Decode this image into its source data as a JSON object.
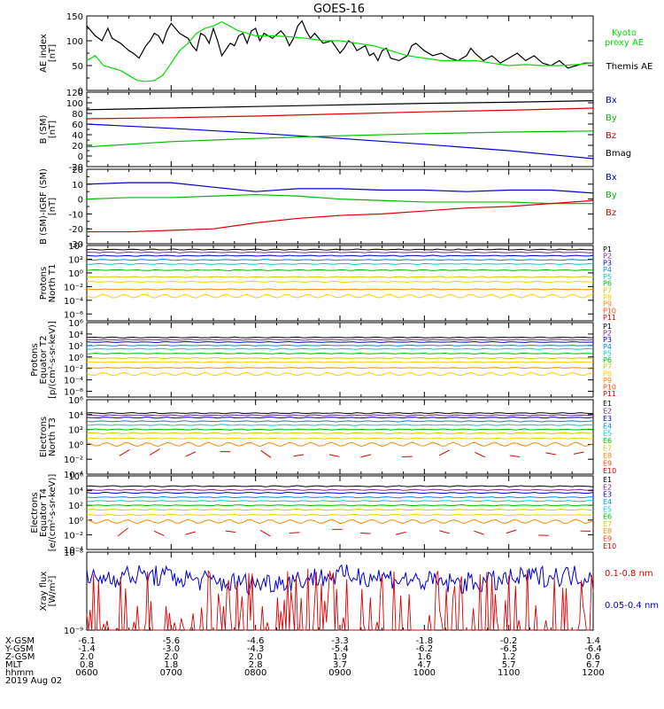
{
  "chart_data": {
    "type": "line",
    "title": "GOES-16",
    "panels": [
      {
        "id": "ae",
        "ylabel": [
          "AE index",
          "[nT]"
        ],
        "ylim": [
          0,
          150
        ],
        "log": false,
        "ticks": [
          "0",
          "50",
          "100",
          "150"
        ],
        "tick_values": [
          0,
          50,
          100,
          150
        ],
        "legend": [
          {
            "name": "Kyoto",
            "color": "#00dd00"
          },
          {
            "name": "proxy AE",
            "color": "#00dd00"
          },
          {
            "name": "Themis AE",
            "color": "#000000"
          }
        ],
        "series": [
          {
            "name": "Themis AE",
            "color": "#000000",
            "kind": "line",
            "x": [
              0,
              0.05,
              0.1,
              0.18,
              0.25,
              0.3,
              0.4,
              0.5,
              0.55,
              0.62,
              0.7,
              0.75,
              0.8,
              0.85,
              0.9,
              0.95,
              1.0,
              1.05,
              1.1,
              1.2,
              1.25,
              1.3,
              1.35,
              1.4,
              1.45,
              1.5,
              1.55,
              1.6,
              1.7,
              1.75,
              1.8,
              1.85,
              1.9,
              1.95,
              2.0,
              2.05,
              2.1,
              2.2,
              2.3,
              2.35,
              2.4,
              2.45,
              2.5,
              2.55,
              2.6,
              2.65,
              2.7,
              2.8,
              2.9,
              3.0,
              3.05,
              3.1,
              3.15,
              3.2,
              3.3,
              3.35,
              3.4,
              3.45,
              3.5,
              3.55,
              3.6,
              3.7,
              3.8,
              3.85,
              3.9,
              4.0,
              4.1,
              4.2,
              4.3,
              4.4,
              4.5,
              4.55,
              4.6,
              4.7,
              4.8,
              4.9,
              5.0,
              5.1,
              5.2,
              5.3,
              5.4,
              5.5,
              5.6,
              5.7,
              5.8,
              5.9,
              6.0
            ],
            "y": [
              130,
              120,
              110,
              100,
              125,
              105,
              95,
              80,
              75,
              65,
              90,
              100,
              115,
              110,
              95,
              120,
              135,
              125,
              115,
              105,
              90,
              80,
              115,
              110,
              95,
              125,
              100,
              70,
              95,
              90,
              110,
              115,
              95,
              120,
              125,
              100,
              115,
              105,
              120,
              110,
              90,
              105,
              130,
              140,
              120,
              105,
              115,
              95,
              100,
              75,
              85,
              100,
              95,
              80,
              90,
              70,
              75,
              60,
              80,
              85,
              65,
              60,
              70,
              90,
              95,
              80,
              70,
              75,
              65,
              60,
              70,
              85,
              75,
              60,
              70,
              55,
              65,
              75,
              60,
              70,
              55,
              50,
              60,
              45,
              50,
              55,
              55
            ]
          },
          {
            "name": "Kyoto proxy AE",
            "color": "#00dd00",
            "kind": "line",
            "x": [
              0,
              0.1,
              0.2,
              0.3,
              0.4,
              0.5,
              0.6,
              0.7,
              0.8,
              0.9,
              1.0,
              1.1,
              1.2,
              1.3,
              1.4,
              1.5,
              1.6,
              1.8,
              2.0,
              2.2,
              2.4,
              2.6,
              2.8,
              3.0,
              3.2,
              3.4,
              3.6,
              3.8,
              4.0,
              4.2,
              4.4,
              4.6,
              4.8,
              5.0,
              5.2,
              5.4,
              5.6,
              5.8,
              6.0
            ],
            "y": [
              60,
              70,
              50,
              45,
              40,
              30,
              20,
              18,
              20,
              30,
              55,
              80,
              95,
              115,
              125,
              130,
              138,
              120,
              110,
              110,
              108,
              105,
              100,
              100,
              95,
              90,
              80,
              70,
              65,
              60,
              60,
              60,
              55,
              50,
              52,
              50,
              50,
              52,
              55
            ]
          }
        ]
      },
      {
        "id": "bsm",
        "ylabel": [
          "B (SM)",
          "[nT]"
        ],
        "ylim": [
          -20,
          120
        ],
        "log": false,
        "ticks": [
          "-20",
          "0",
          "20",
          "40",
          "60",
          "80",
          "100",
          "120"
        ],
        "tick_values": [
          -20,
          0,
          20,
          40,
          60,
          80,
          100,
          120
        ],
        "legend": [
          {
            "name": "Bx",
            "color": "#0000cc"
          },
          {
            "name": "By",
            "color": "#00bb00"
          },
          {
            "name": "Bz",
            "color": "#dd0000"
          },
          {
            "name": "Bmag",
            "color": "#000000"
          }
        ],
        "series": [
          {
            "name": "Bmag",
            "color": "#000000",
            "x": [
              0,
              1,
              2,
              3,
              4,
              5,
              6
            ],
            "y": [
              87,
              90,
              93,
              96,
              99,
              101,
              104
            ]
          },
          {
            "name": "Bz",
            "color": "#dd0000",
            "x": [
              0,
              1,
              2,
              3,
              4,
              5,
              6
            ],
            "y": [
              70,
              72,
              75,
              79,
              83,
              86,
              90
            ]
          },
          {
            "name": "Bx",
            "color": "#0000cc",
            "x": [
              0,
              1,
              2,
              3,
              4,
              5,
              6
            ],
            "y": [
              60,
              52,
              43,
              33,
              22,
              10,
              -5
            ]
          },
          {
            "name": "By",
            "color": "#00bb00",
            "x": [
              0,
              1,
              2,
              3,
              4,
              5,
              6
            ],
            "y": [
              17,
              27,
              33,
              38,
              42,
              45,
              47
            ]
          }
        ]
      },
      {
        "id": "bsmigrf",
        "ylabel": [
          "B (SM)-IGRF (SM)",
          "[nT]"
        ],
        "ylim": [
          -30,
          20
        ],
        "log": false,
        "ticks": [
          "-30",
          "-20",
          "-10",
          "0",
          "10",
          "20"
        ],
        "tick_values": [
          -30,
          -20,
          -10,
          0,
          10,
          20
        ],
        "legend": [
          {
            "name": "Bx",
            "color": "#0000cc"
          },
          {
            "name": "By",
            "color": "#00bb00"
          },
          {
            "name": "Bz",
            "color": "#dd0000"
          }
        ],
        "series": [
          {
            "name": "Bx",
            "color": "#0000cc",
            "x": [
              0,
              0.5,
              1,
              1.5,
              2,
              2.5,
              3,
              3.5,
              4,
              4.5,
              5,
              5.5,
              6
            ],
            "y": [
              10,
              11,
              11,
              8,
              5,
              7,
              7,
              6,
              6,
              5,
              6,
              6,
              4
            ]
          },
          {
            "name": "By",
            "color": "#00bb00",
            "x": [
              0,
              0.5,
              1,
              1.5,
              2,
              2.5,
              3,
              3.5,
              4,
              4.5,
              5,
              5.5,
              6
            ],
            "y": [
              0,
              1,
              1,
              2,
              3,
              2,
              0,
              -1,
              -2,
              -2,
              -2,
              -3,
              -3
            ]
          },
          {
            "name": "Bz",
            "color": "#dd0000",
            "x": [
              0,
              0.5,
              1,
              1.5,
              2,
              2.5,
              3,
              3.5,
              4,
              4.5,
              5,
              5.5,
              6
            ],
            "y": [
              -22,
              -22,
              -21,
              -20,
              -16,
              -13,
              -11,
              -10,
              -8,
              -6,
              -5,
              -3,
              -1
            ]
          }
        ]
      },
      {
        "id": "pn",
        "ylabel": [
          "Protons",
          "North T1"
        ],
        "ylim": [
          -7,
          4
        ],
        "log": true,
        "ticks": [
          "10⁶",
          "10⁴",
          "10²",
          "10⁰",
          "10⁻²",
          "10⁻⁴",
          "10⁻⁶"
        ],
        "tick_exps": [
          4,
          2,
          0,
          -2,
          -4,
          -6
        ],
        "tick_labels": [
          "10^4",
          "10^2",
          "10^0",
          "10^-2",
          "10^-4",
          "10^-6"
        ],
        "legend": [
          {
            "name": "P1",
            "color": "#000000"
          },
          {
            "name": "P2",
            "color": "#7a2a8a"
          },
          {
            "name": "P3",
            "color": "#0000cc"
          },
          {
            "name": "P4",
            "color": "#0088ff"
          },
          {
            "name": "P5",
            "color": "#00cccc"
          },
          {
            "name": "P6",
            "color": "#00bb00"
          },
          {
            "name": "P7",
            "color": "#cccc00"
          },
          {
            "name": "P8",
            "color": "#ffcc00"
          },
          {
            "name": "P9",
            "color": "#ff8800"
          },
          {
            "name": "P10",
            "color": "#ff4400"
          },
          {
            "name": "P11",
            "color": "#cc0000"
          }
        ],
        "levels": [
          3.4,
          3.0,
          2.5,
          1.9,
          1.3,
          0.4,
          -0.6,
          -1.3,
          -2.4,
          -3.4
        ],
        "colors": [
          "#000000",
          "#7a2a8a",
          "#0000cc",
          "#0088ff",
          "#00cccc",
          "#00bb00",
          "#cccc00",
          "#ffcc00",
          "#ff8800",
          "#ffcc00"
        ]
      },
      {
        "id": "pe",
        "ylabel": [
          "Protons",
          "Equator T2",
          "[p/(cm²-s-sr-keV)]"
        ],
        "ylim": [
          -7,
          6
        ],
        "log": true,
        "tick_exps": [
          6,
          4,
          2,
          0,
          -2,
          -4,
          -6
        ],
        "tick_labels": [
          "10^6",
          "10^4",
          "10^2",
          "10^0",
          "10^-2",
          "10^-4",
          "10^-6"
        ],
        "legend": [
          {
            "name": "P1",
            "color": "#000000"
          },
          {
            "name": "P2",
            "color": "#7a2a8a"
          },
          {
            "name": "P3",
            "color": "#0000cc"
          },
          {
            "name": "P4",
            "color": "#0088ff"
          },
          {
            "name": "P5",
            "color": "#00cccc"
          },
          {
            "name": "P6",
            "color": "#00bb00"
          },
          {
            "name": "P7",
            "color": "#cccc00"
          },
          {
            "name": "P8",
            "color": "#ffcc00"
          },
          {
            "name": "P9",
            "color": "#ff8800"
          },
          {
            "name": "P10",
            "color": "#ff4400"
          },
          {
            "name": "P11",
            "color": "#cc0000"
          }
        ],
        "levels": [
          3.4,
          3.0,
          2.6,
          2.0,
          1.4,
          0.6,
          -0.2,
          -0.9,
          -1.9,
          -3.0
        ],
        "colors": [
          "#000000",
          "#7a2a8a",
          "#0000cc",
          "#0088ff",
          "#00cccc",
          "#00bb00",
          "#cccc00",
          "#ffcc00",
          "#ff8800",
          "#ffcc00"
        ]
      },
      {
        "id": "en",
        "ylabel": [
          "Electrons",
          "North T3"
        ],
        "ylim": [
          -4,
          6
        ],
        "log": true,
        "tick_exps": [
          6,
          4,
          2,
          0,
          -2,
          -4
        ],
        "tick_labels": [
          "10^6",
          "10^4",
          "10^2",
          "10^0",
          "10^-2",
          "10^-4"
        ],
        "legend": [
          {
            "name": "E1",
            "color": "#000000"
          },
          {
            "name": "E2",
            "color": "#7a2a8a"
          },
          {
            "name": "E3",
            "color": "#0000cc"
          },
          {
            "name": "E4",
            "color": "#0088ff"
          },
          {
            "name": "E5",
            "color": "#00cccc"
          },
          {
            "name": "E6",
            "color": "#00bb00"
          },
          {
            "name": "E7",
            "color": "#cccc00"
          },
          {
            "name": "E8",
            "color": "#ff8800"
          },
          {
            "name": "E9",
            "color": "#ff4400"
          },
          {
            "name": "E10",
            "color": "#cc0000"
          }
        ],
        "levels": [
          4.2,
          3.9,
          3.6,
          3.1,
          2.6,
          2.0,
          1.5,
          0.8,
          0.0
        ],
        "colors": [
          "#000000",
          "#7a2a8a",
          "#0000cc",
          "#0088ff",
          "#00cccc",
          "#00bb00",
          "#cccc00",
          "#ffcc00",
          "#ff8800"
        ]
      },
      {
        "id": "ee",
        "ylabel": [
          "Electrons",
          "Equator T4",
          "[e/(cm²-s-sr-keV)]"
        ],
        "ylim": [
          -4,
          6
        ],
        "log": true,
        "tick_exps": [
          6,
          4,
          2,
          0,
          -2,
          -4
        ],
        "tick_labels": [
          "10^6",
          "10^4",
          "10^2",
          "10^0",
          "10^-2",
          "10^-4"
        ],
        "legend": [
          {
            "name": "E1",
            "color": "#000000"
          },
          {
            "name": "E2",
            "color": "#7a2a8a"
          },
          {
            "name": "E3",
            "color": "#0000cc"
          },
          {
            "name": "E4",
            "color": "#0088ff"
          },
          {
            "name": "E5",
            "color": "#00cccc"
          },
          {
            "name": "E6",
            "color": "#00bb00"
          },
          {
            "name": "E7",
            "color": "#cccc00"
          },
          {
            "name": "E8",
            "color": "#ff8800"
          },
          {
            "name": "E9",
            "color": "#ff4400"
          },
          {
            "name": "E10",
            "color": "#cc0000"
          }
        ],
        "levels": [
          4.6,
          4.1,
          3.7,
          3.1,
          2.6,
          2.0,
          1.4,
          0.7,
          -0.2
        ],
        "colors": [
          "#000000",
          "#7a2a8a",
          "#0000cc",
          "#0088ff",
          "#00cccc",
          "#00bb00",
          "#cccc00",
          "#ffcc00",
          "#ff8800"
        ]
      },
      {
        "id": "xray",
        "ylabel": [
          "Xray flux",
          "[W/m²]"
        ],
        "ylim": [
          -9,
          -8
        ],
        "log": true,
        "tick_exps": [
          -8,
          -9
        ],
        "tick_labels": [
          "10^-8",
          "10^-9"
        ],
        "legend": [
          {
            "name": "0.1-0.8 nm",
            "color": "#dd0000"
          },
          {
            "name": "0.05-0.4 nm",
            "color": "#0000cc"
          }
        ]
      }
    ],
    "x_axis": {
      "rows": [
        {
          "name": "X-GSM",
          "values": [
            "-6.1",
            "-5.6",
            "-4.6",
            "-3.3",
            "-1.8",
            "-0.2",
            "1.4"
          ]
        },
        {
          "name": "Y-GSM",
          "values": [
            "-1.4",
            "-3.0",
            "-4.3",
            "-5.4",
            "-6.2",
            "-6.5",
            "-6.4"
          ]
        },
        {
          "name": "Z-GSM",
          "values": [
            "2.0",
            "2.0",
            "2.0",
            "1.9",
            "1.6",
            "1.2",
            "0.6"
          ]
        },
        {
          "name": "MLT",
          "values": [
            "0.8",
            "1.8",
            "2.8",
            "3.7",
            "4.7",
            "5.7",
            "6.7"
          ]
        },
        {
          "name": "hhmm",
          "values": [
            "0600",
            "0700",
            "0800",
            "0900",
            "1000",
            "1100",
            "1200"
          ]
        }
      ],
      "date": "2019 Aug 02"
    }
  }
}
